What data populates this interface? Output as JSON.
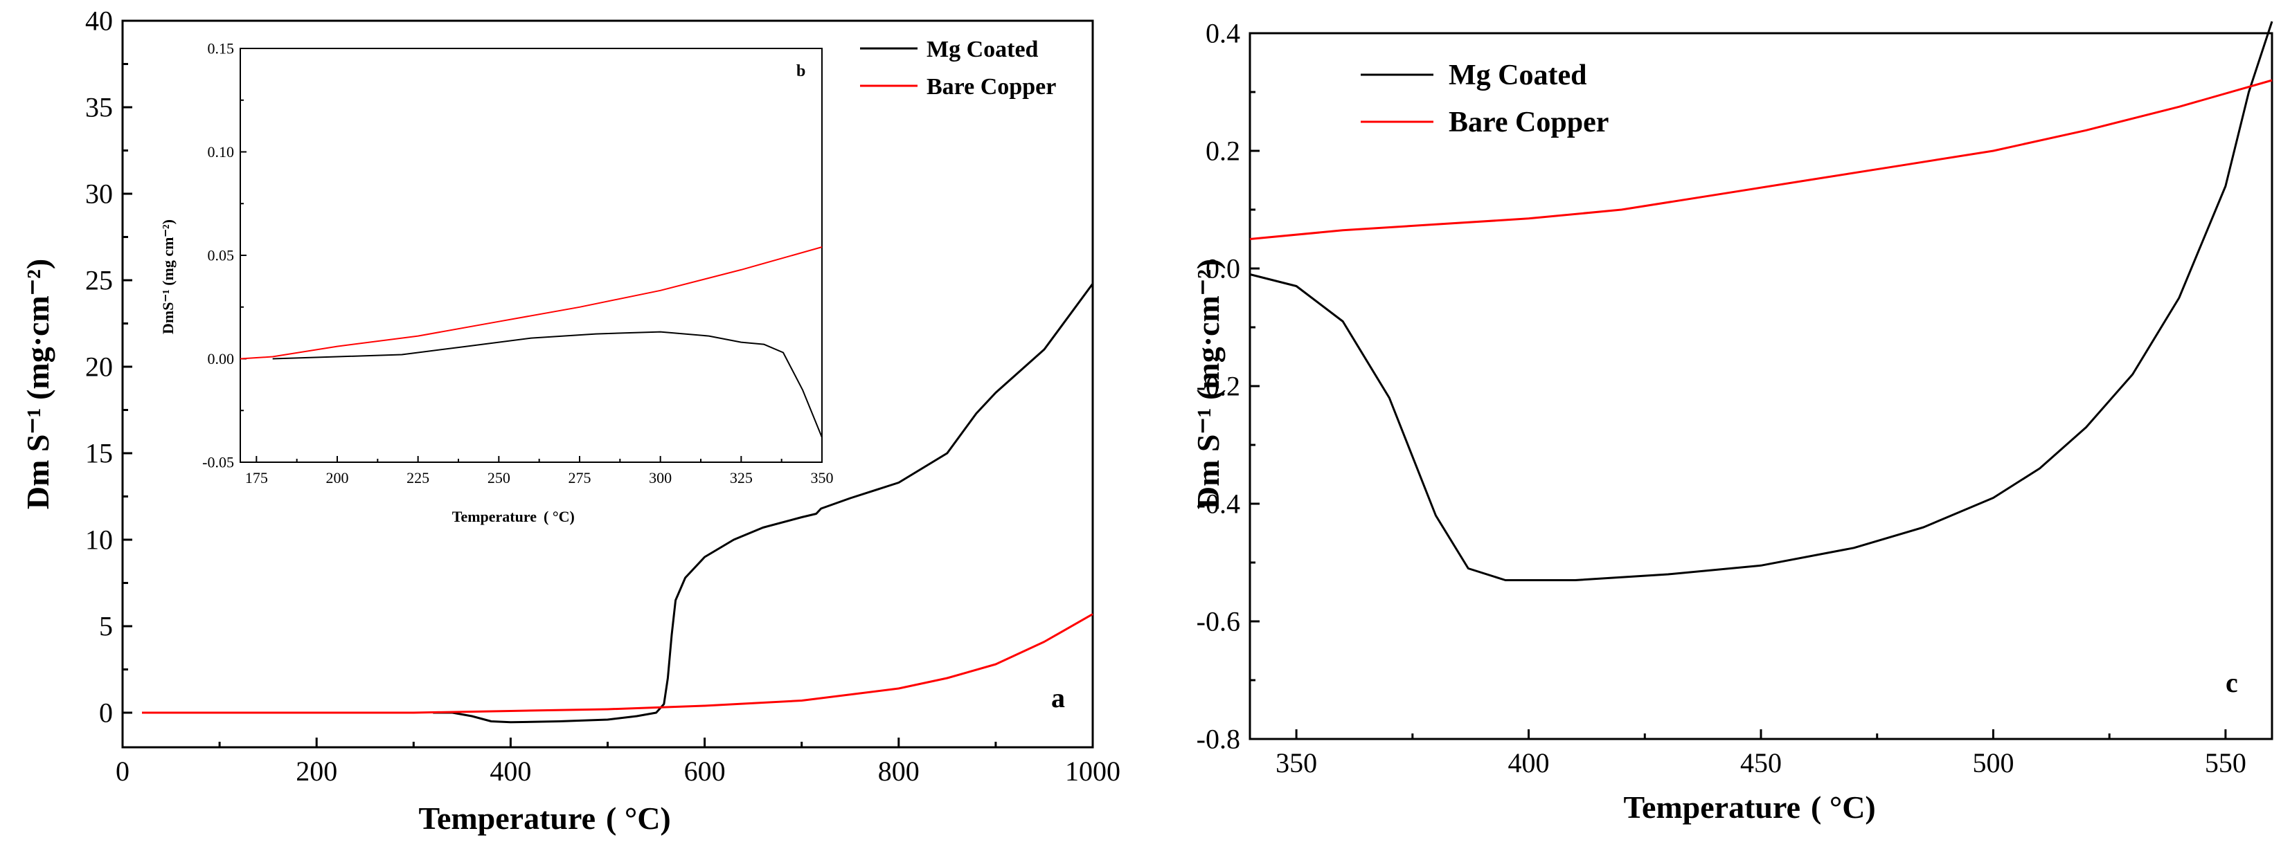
{
  "chart_data": [
    {
      "id": "a",
      "type": "line",
      "panel_label": "a",
      "xlabel": "Temperature",
      "xlabel_unit": "( °C)",
      "ylabel": "Dm S⁻¹ (mg·cm⁻²)",
      "xlim": [
        0,
        1000
      ],
      "ylim": [
        -2,
        40
      ],
      "xticks": [
        0,
        200,
        400,
        600,
        800,
        1000
      ],
      "yticks": [
        0,
        5,
        10,
        15,
        20,
        25,
        30,
        35,
        40
      ],
      "legend_position": "top-right",
      "series": [
        {
          "name": "Mg Coated",
          "color": "#000000",
          "points": [
            [
              320,
              0
            ],
            [
              340,
              0
            ],
            [
              360,
              -0.2
            ],
            [
              380,
              -0.5
            ],
            [
              400,
              -0.55
            ],
            [
              450,
              -0.5
            ],
            [
              500,
              -0.4
            ],
            [
              530,
              -0.2
            ],
            [
              550,
              0
            ],
            [
              558,
              0.5
            ],
            [
              562,
              2
            ],
            [
              566,
              4.5
            ],
            [
              570,
              6.5
            ],
            [
              580,
              7.8
            ],
            [
              600,
              9
            ],
            [
              630,
              10
            ],
            [
              660,
              10.7
            ],
            [
              700,
              11.3
            ],
            [
              715,
              11.5
            ],
            [
              720,
              11.8
            ],
            [
              750,
              12.4
            ],
            [
              800,
              13.3
            ],
            [
              850,
              15
            ],
            [
              880,
              17.3
            ],
            [
              900,
              18.5
            ],
            [
              950,
              21
            ],
            [
              1000,
              24.8
            ]
          ]
        },
        {
          "name": "Bare Copper",
          "color": "#ff0000",
          "points": [
            [
              20,
              0
            ],
            [
              300,
              0
            ],
            [
              400,
              0.1
            ],
            [
              500,
              0.2
            ],
            [
              600,
              0.4
            ],
            [
              700,
              0.7
            ],
            [
              800,
              1.4
            ],
            [
              850,
              2
            ],
            [
              900,
              2.8
            ],
            [
              950,
              4.1
            ],
            [
              1000,
              5.7
            ]
          ]
        }
      ]
    },
    {
      "id": "b",
      "type": "line",
      "panel_label": "b",
      "inset_of": "a",
      "xlabel": "Temperature",
      "xlabel_unit": "( °C)",
      "ylabel": "DmS⁻¹ (mg cm⁻²)",
      "xlim": [
        170,
        350
      ],
      "ylim": [
        -0.05,
        0.15
      ],
      "xticks": [
        175,
        200,
        225,
        250,
        275,
        300,
        325,
        350
      ],
      "ytick_labels": [
        "-0.05",
        "0.00",
        "0.05",
        "0.10",
        "0.15"
      ],
      "yticks": [
        -0.05,
        0,
        0.05,
        0.1,
        0.15
      ],
      "series": [
        {
          "name": "Mg Coated",
          "color": "#000000",
          "points": [
            [
              180,
              0
            ],
            [
              200,
              0.001
            ],
            [
              220,
              0.002
            ],
            [
              240,
              0.006
            ],
            [
              260,
              0.01
            ],
            [
              280,
              0.012
            ],
            [
              300,
              0.013
            ],
            [
              315,
              0.011
            ],
            [
              325,
              0.008
            ],
            [
              332,
              0.007
            ],
            [
              338,
              0.003
            ],
            [
              344,
              -0.015
            ],
            [
              350,
              -0.038
            ]
          ]
        },
        {
          "name": "Bare Copper",
          "color": "#ff0000",
          "points": [
            [
              170,
              0
            ],
            [
              180,
              0.001
            ],
            [
              200,
              0.006
            ],
            [
              225,
              0.011
            ],
            [
              250,
              0.018
            ],
            [
              275,
              0.025
            ],
            [
              300,
              0.033
            ],
            [
              325,
              0.043
            ],
            [
              350,
              0.054
            ]
          ]
        }
      ]
    },
    {
      "id": "c",
      "type": "line",
      "panel_label": "c",
      "xlabel": "Temperature",
      "xlabel_unit": "( °C)",
      "ylabel": "Dm S⁻¹ (mg·cm⁻²)",
      "xlim": [
        340,
        560
      ],
      "ylim": [
        -0.8,
        0.4
      ],
      "xticks": [
        350,
        400,
        450,
        500,
        550
      ],
      "ytick_labels": [
        "-0.8",
        "-0.6",
        "-0.4",
        "-0.2",
        "0.0",
        "0.2",
        "0.4"
      ],
      "yticks": [
        -0.8,
        -0.6,
        -0.4,
        -0.2,
        0,
        0.2,
        0.4
      ],
      "legend_position": "top-left",
      "series": [
        {
          "name": "Mg Coated",
          "color": "#000000",
          "points": [
            [
              340,
              -0.01
            ],
            [
              350,
              -0.03
            ],
            [
              360,
              -0.09
            ],
            [
              370,
              -0.22
            ],
            [
              380,
              -0.42
            ],
            [
              387,
              -0.51
            ],
            [
              395,
              -0.53
            ],
            [
              410,
              -0.53
            ],
            [
              430,
              -0.52
            ],
            [
              450,
              -0.505
            ],
            [
              470,
              -0.475
            ],
            [
              485,
              -0.44
            ],
            [
              500,
              -0.39
            ],
            [
              510,
              -0.34
            ],
            [
              520,
              -0.27
            ],
            [
              530,
              -0.18
            ],
            [
              540,
              -0.05
            ],
            [
              550,
              0.14
            ],
            [
              555,
              0.3
            ],
            [
              560,
              0.42
            ]
          ]
        },
        {
          "name": "Bare Copper",
          "color": "#ff0000",
          "points": [
            [
              340,
              0.05
            ],
            [
              360,
              0.065
            ],
            [
              380,
              0.075
            ],
            [
              400,
              0.085
            ],
            [
              420,
              0.1
            ],
            [
              440,
              0.125
            ],
            [
              460,
              0.15
            ],
            [
              480,
              0.175
            ],
            [
              500,
              0.2
            ],
            [
              520,
              0.235
            ],
            [
              540,
              0.275
            ],
            [
              560,
              0.32
            ]
          ]
        }
      ]
    }
  ]
}
